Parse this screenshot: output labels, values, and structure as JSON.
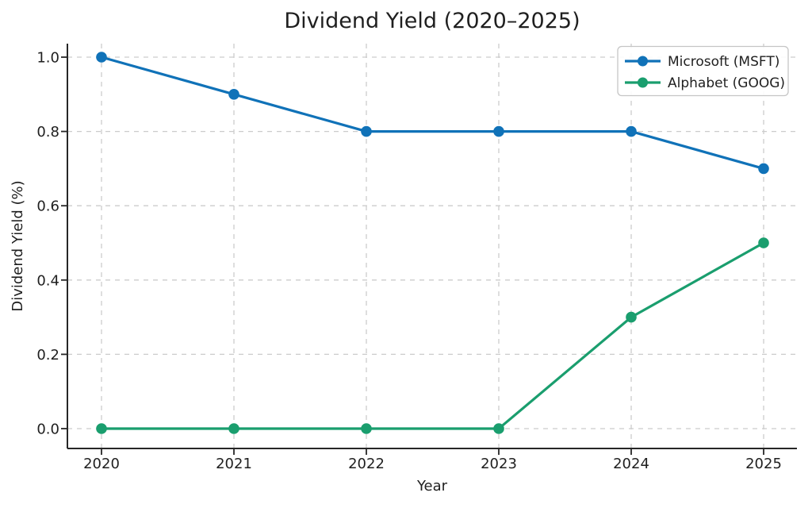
{
  "chart_data": {
    "type": "line",
    "title": "Dividend Yield (2020–2025)",
    "xlabel": "Year",
    "ylabel": "Dividend Yield (%)",
    "x": [
      2020,
      2021,
      2022,
      2023,
      2024,
      2025
    ],
    "xtick_labels": [
      "2020",
      "2021",
      "2022",
      "2023",
      "2024",
      "2025"
    ],
    "yticks": [
      0.0,
      0.2,
      0.4,
      0.6,
      0.8,
      1.0
    ],
    "ytick_labels": [
      "0.0",
      "0.2",
      "0.4",
      "0.6",
      "0.8",
      "1.0"
    ],
    "ylim": [
      0.0,
      1.0
    ],
    "grid": true,
    "grid_style": "dashed",
    "legend_position": "upper right",
    "series": [
      {
        "name": "Microsoft (MSFT)",
        "color": "#1072b8",
        "values": [
          1.0,
          0.9,
          0.8,
          0.8,
          0.8,
          0.7
        ]
      },
      {
        "name": "Alphabet (GOOG)",
        "color": "#1a9e6e",
        "values": [
          0.0,
          0.0,
          0.0,
          0.0,
          0.3,
          0.5
        ]
      }
    ]
  }
}
